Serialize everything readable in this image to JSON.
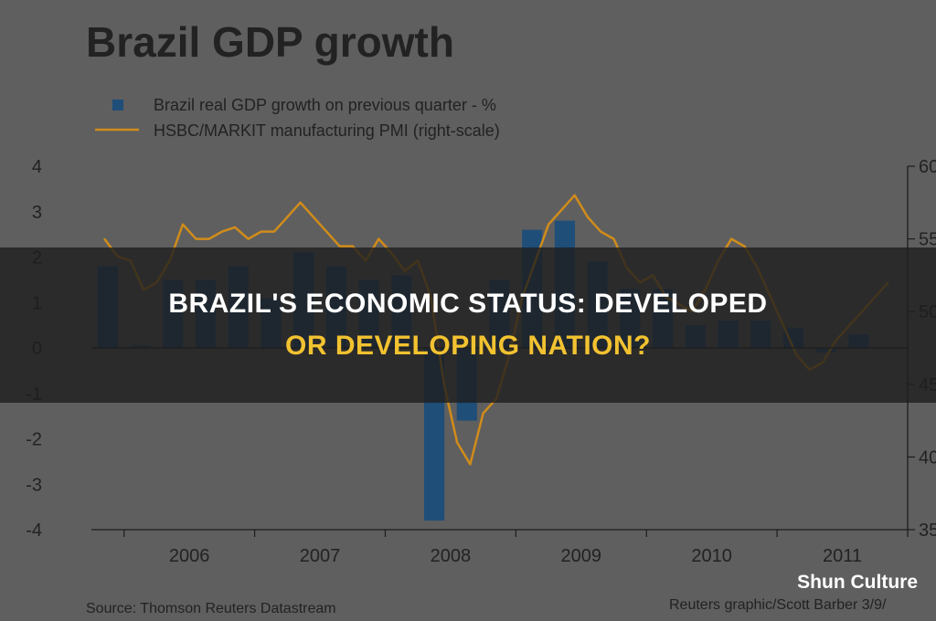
{
  "overlay": {
    "title_line1": "Brazil's Economic Status: Developed",
    "title_line2": "Or Developing Nation?",
    "watermark": "Shun Culture",
    "accent_color": "#f2c230"
  },
  "chart_data": {
    "type": "bar",
    "title": "Brazil GDP growth",
    "source": "Source: Thomson Reuters Datastream",
    "credit": "Reuters graphic/Scott Barber 3/9/",
    "x_tick_labels": [
      "2006",
      "2007",
      "2008",
      "2009",
      "2010",
      "2011"
    ],
    "y_left_ticks": [
      "4",
      "3",
      "2",
      "1",
      "0",
      "-1",
      "-2",
      "-3",
      "-4"
    ],
    "y_right_ticks": [
      "60",
      "55",
      "50",
      "45",
      "40",
      "35"
    ],
    "ylim_left": [
      -4,
      4
    ],
    "ylim_right": [
      35,
      60
    ],
    "x_range": [
      2005.75,
      2012.0
    ],
    "grid": false,
    "legend_position": "top-left",
    "series": [
      {
        "name": "Brazil real GDP growth on previous quarter - %",
        "kind": "bar",
        "color": "#1f4e79",
        "x": [
          2005.875,
          2006.125,
          2006.375,
          2006.625,
          2006.875,
          2007.125,
          2007.375,
          2007.625,
          2007.875,
          2008.125,
          2008.375,
          2008.625,
          2008.875,
          2009.125,
          2009.375,
          2009.625,
          2009.875,
          2010.125,
          2010.375,
          2010.625,
          2010.875,
          2011.125,
          2011.375,
          2011.625
        ],
        "values": [
          1.8,
          0.05,
          1.5,
          1.5,
          1.8,
          1.1,
          2.1,
          1.8,
          1.5,
          1.6,
          -3.8,
          -1.6,
          1.5,
          2.6,
          2.8,
          1.9,
          1.3,
          1.3,
          0.5,
          0.6,
          0.6,
          0.45,
          -0.1,
          0.3
        ]
      },
      {
        "name": "HSBC/MARKIT manufacturing PMI (right-scale)",
        "kind": "line",
        "color": "#d08c1a",
        "axis": "right",
        "x": [
          2005.85,
          2005.95,
          2006.05,
          2006.15,
          2006.25,
          2006.35,
          2006.45,
          2006.55,
          2006.65,
          2006.75,
          2006.85,
          2006.95,
          2007.05,
          2007.15,
          2007.25,
          2007.35,
          2007.45,
          2007.55,
          2007.65,
          2007.75,
          2007.85,
          2007.95,
          2008.05,
          2008.15,
          2008.25,
          2008.35,
          2008.45,
          2008.55,
          2008.65,
          2008.75,
          2008.85,
          2008.95,
          2009.05,
          2009.15,
          2009.25,
          2009.35,
          2009.45,
          2009.55,
          2009.65,
          2009.75,
          2009.85,
          2009.95,
          2010.05,
          2010.15,
          2010.25,
          2010.35,
          2010.45,
          2010.55,
          2010.65,
          2010.75,
          2010.85,
          2010.95,
          2011.05,
          2011.15,
          2011.25,
          2011.35,
          2011.45,
          2011.55,
          2011.65,
          2011.75,
          2011.85
        ],
        "values": [
          55.0,
          53.8,
          53.5,
          51.5,
          52.0,
          53.5,
          56.0,
          55.0,
          55.0,
          55.5,
          55.8,
          55.0,
          55.5,
          55.5,
          56.5,
          57.5,
          56.5,
          55.5,
          54.5,
          54.5,
          53.5,
          55.0,
          54.0,
          52.8,
          53.5,
          51.0,
          45.0,
          41.0,
          39.5,
          43.0,
          44.0,
          47.0,
          51.0,
          53.5,
          56.0,
          57.0,
          58.0,
          56.5,
          55.5,
          55.0,
          53.0,
          52.0,
          52.5,
          51.0,
          50.5,
          50.0,
          51.5,
          53.5,
          55.0,
          54.5,
          53.0,
          51.0,
          49.0,
          47.0,
          46.0,
          46.5,
          48.0,
          49.0,
          50.0,
          51.0,
          52.0
        ]
      }
    ]
  }
}
